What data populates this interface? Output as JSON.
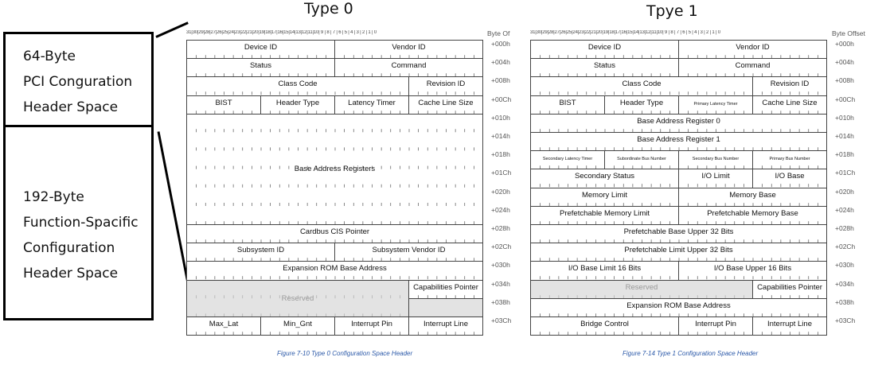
{
  "left_panel": {
    "top_box": [
      "64-Byte",
      "PCI Conguration",
      "Header Space"
    ],
    "bottom_box": [
      "192-Byte",
      "Function-Spacific",
      "Configuration",
      "Header Space"
    ]
  },
  "type0": {
    "title": "Type 0",
    "bits_label": "31|30|29|28|27|26|25|24|23|22|21|20|19|18|17|16|15|14|13|12|11|10| 9 | 8 | 7 | 6 | 5 | 4 | 3 | 2 | 1 | 0",
    "offset_header": "Byte Of",
    "offsets": [
      "+000h",
      "+004h",
      "+008h",
      "+00Ch",
      "+010h",
      "+014h",
      "+018h",
      "+01Ch",
      "+020h",
      "+024h",
      "+028h",
      "+02Ch",
      "+030h",
      "+034h",
      "+038h",
      "+03Ch"
    ],
    "caption": "Figure 7-10 Type 0 Configuration Space Header",
    "cells": {
      "device_id": "Device ID",
      "vendor_id": "Vendor ID",
      "status": "Status",
      "command": "Command",
      "class_code": "Class Code",
      "revision_id": "Revision ID",
      "bist": "BIST",
      "header_type": "Header Type",
      "latency_timer": "Latency Timer",
      "cache_line_size": "Cache Line Size",
      "bars": "Base Address Registers",
      "cardbus": "Cardbus CIS Pointer",
      "subsystem_id": "Subsystem ID",
      "subsystem_vendor_id": "Subsystem Vendor ID",
      "expansion_rom": "Expansion ROM Base Address",
      "reserved": "Reserved",
      "cap_pointer": "Capabilities Pointer",
      "max_lat": "Max_Lat",
      "min_gnt": "Min_Gnt",
      "interrupt_pin": "Interrupt Pin",
      "interrupt_line": "Interrupt Line"
    }
  },
  "type1": {
    "title": "Tpye 1",
    "bits_label": "31|30|29|28|27|26|25|24|23|22|21|20|19|18|17|16|15|14|13|12|11|10| 9 | 8 | 7 | 6 | 5 | 4 | 3 | 2 | 1 | 0",
    "offset_header": "Byte Offset",
    "offsets": [
      "+000h",
      "+004h",
      "+008h",
      "+00Ch",
      "+010h",
      "+014h",
      "+018h",
      "+01Ch",
      "+020h",
      "+024h",
      "+028h",
      "+02Ch",
      "+030h",
      "+034h",
      "+038h",
      "+03Ch"
    ],
    "caption": "Figure 7-14 Type 1 Configuration Space Header",
    "cells": {
      "device_id": "Device ID",
      "vendor_id": "Vendor ID",
      "status": "Status",
      "command": "Command",
      "class_code": "Class Code",
      "revision_id": "Revision ID",
      "bist": "BIST",
      "header_type": "Header Type",
      "primary_latency_timer": "Primary Latency Timer",
      "cache_line_size": "Cache Line Size",
      "bar0": "Base Address Register 0",
      "bar1": "Base Address Register 1",
      "secondary_latency_timer": "Secondary Latency Timer",
      "subordinate_bus_number": "Subordinate Bus Number",
      "secondary_bus_number": "Secondary Bus Number",
      "primary_bus_number": "Primary Bus Number",
      "secondary_status": "Secondary Status",
      "io_limit": "I/O Limit",
      "io_base": "I/O Base",
      "memory_limit": "Memory Limit",
      "memory_base": "Memory Base",
      "prefetchable_memory_limit": "Prefetchable Memory Limit",
      "prefetchable_memory_base": "Prefetchable Memory Base",
      "prefetchable_base_upper": "Prefetchable Base Upper 32 Bits",
      "prefetchable_limit_upper": "Prefetchable Limit Upper 32 Bits",
      "io_base_limit_16": "I/O Base Limit 16 Bits",
      "io_base_upper_16": "I/O Base Upper 16 Bits",
      "reserved": "Reserved",
      "cap_pointer": "Capabilities Pointer",
      "expansion_rom": "Expansion ROM Base Address",
      "bridge_control": "Bridge Control",
      "interrupt_pin": "Interrupt Pin",
      "interrupt_line": "Interrupt Line"
    }
  }
}
